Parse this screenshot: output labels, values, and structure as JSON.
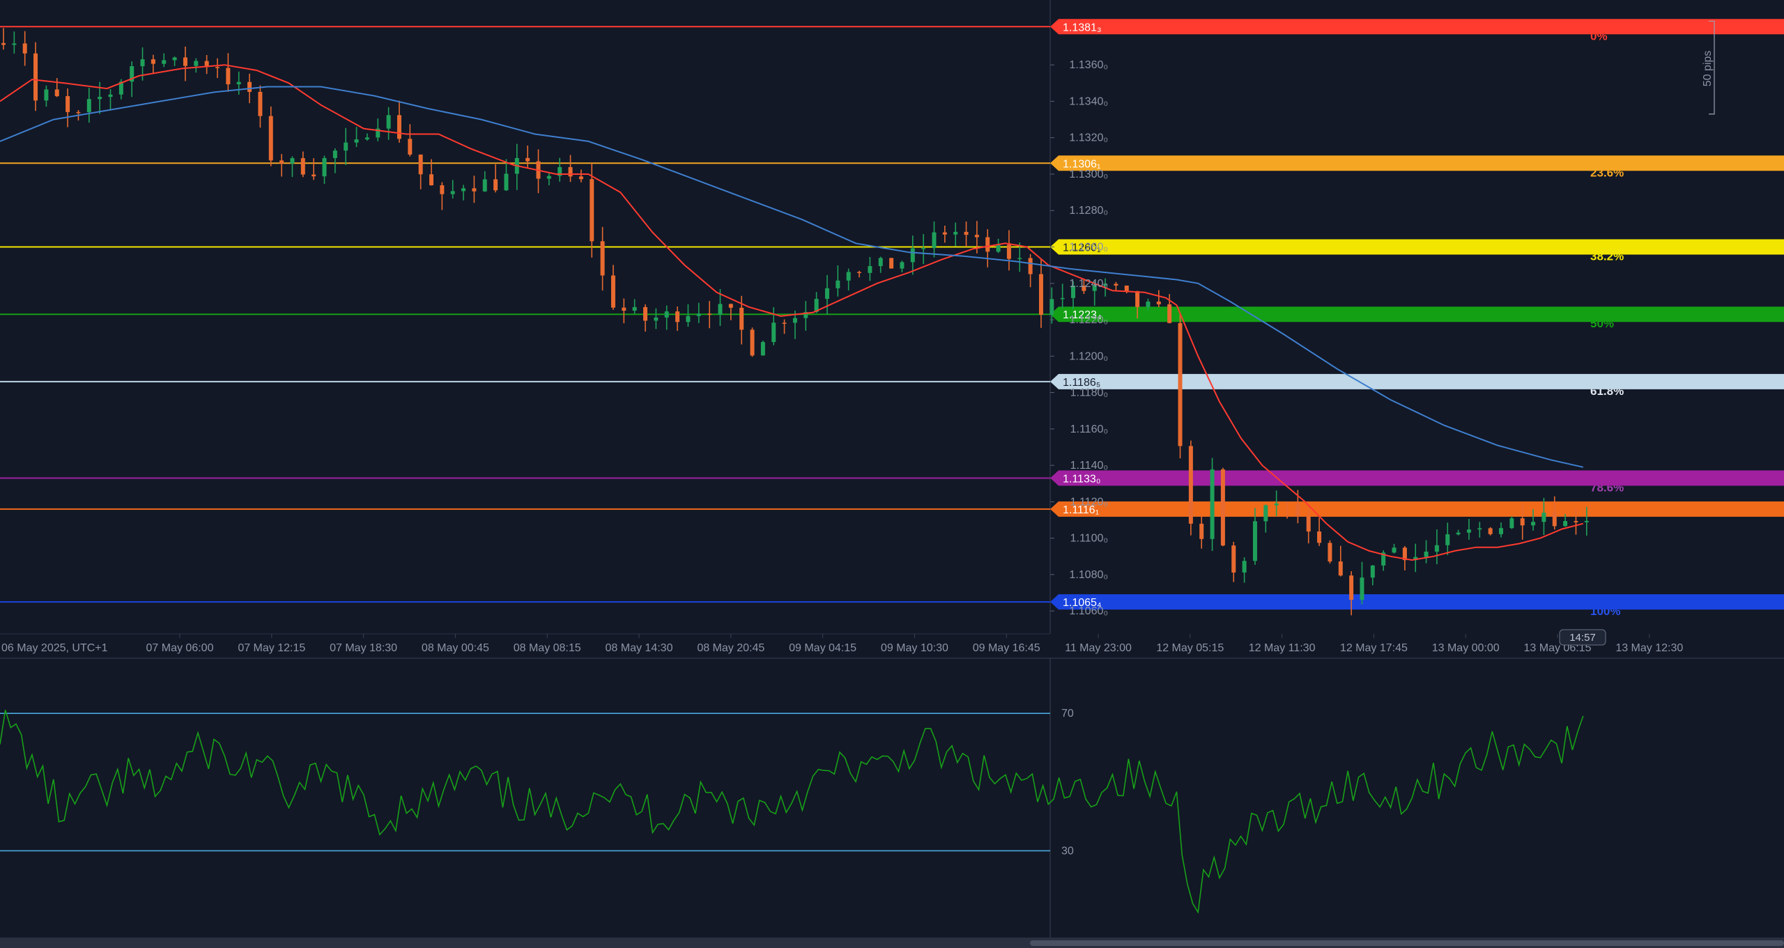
{
  "chart_data": [
    {
      "type": "candlestick",
      "symbol": "EURUSD",
      "timezone_label": "06 May 2025, UTC+1",
      "x_tick_labels": [
        "06 May 2025, UTC+1",
        "07 May 06:00",
        "07 May 12:15",
        "07 May 18:30",
        "08 May 00:45",
        "08 May 08:15",
        "08 May 14:30",
        "08 May 20:45",
        "09 May 04:15",
        "09 May 10:30",
        "09 May 16:45",
        "11 May 23:00",
        "12 May 05:15",
        "12 May 11:30",
        "12 May 17:45",
        "13 May 00:00",
        "13 May 06:15",
        "13 May 12:30"
      ],
      "y_tick_labels": [
        "1.1360₀",
        "1.1340₀",
        "1.1320₀",
        "1.1300₀",
        "1.1280₀",
        "1.1260₀",
        "1.1240₀",
        "1.1220₀",
        "1.1200₀",
        "1.1180₀",
        "1.1160₀",
        "1.1140₀",
        "1.1120₀",
        "1.1100₀",
        "1.1080₀",
        "1.1060₀"
      ],
      "ylim": [
        1.1057,
        1.1388
      ],
      "price_path": [
        [
          0,
          1.1372
        ],
        [
          1.5,
          1.1378
        ],
        [
          3,
          1.1368
        ],
        [
          4,
          1.134
        ],
        [
          5.5,
          1.1345
        ],
        [
          7.5,
          1.1328
        ],
        [
          9.5,
          1.134
        ],
        [
          11,
          1.1345
        ],
        [
          13,
          1.136
        ],
        [
          15,
          1.1365
        ],
        [
          17,
          1.136
        ],
        [
          19,
          1.1362
        ],
        [
          21,
          1.136
        ],
        [
          22.5,
          1.1348
        ],
        [
          24,
          1.1345
        ],
        [
          26,
          1.131
        ],
        [
          28,
          1.1305
        ],
        [
          30,
          1.1303
        ],
        [
          32,
          1.1312
        ],
        [
          34,
          1.1315
        ],
        [
          35.5,
          1.133
        ],
        [
          37,
          1.133
        ],
        [
          38.5,
          1.1318
        ],
        [
          40,
          1.13
        ],
        [
          42,
          1.1285
        ],
        [
          44,
          1.1295
        ],
        [
          46,
          1.1295
        ],
        [
          47.5,
          1.1295
        ],
        [
          49,
          1.1305
        ],
        [
          51,
          1.13
        ],
        [
          53,
          1.13
        ],
        [
          55,
          1.1295
        ],
        [
          56,
          1.1265
        ],
        [
          57.5,
          1.1232
        ],
        [
          59,
          1.1225
        ],
        [
          61,
          1.122
        ],
        [
          63,
          1.1222
        ],
        [
          65,
          1.1225
        ],
        [
          67,
          1.1227
        ],
        [
          69,
          1.1222
        ],
        [
          71,
          1.1205
        ],
        [
          72.5,
          1.1215
        ],
        [
          74,
          1.1222
        ],
        [
          76,
          1.1225
        ],
        [
          78,
          1.124
        ],
        [
          80,
          1.125
        ],
        [
          82,
          1.1248
        ],
        [
          84,
          1.125
        ],
        [
          86,
          1.1255
        ],
        [
          88,
          1.1265
        ],
        [
          89.5,
          1.127
        ],
        [
          91,
          1.1265
        ],
        [
          93,
          1.1258
        ],
        [
          95,
          1.1255
        ],
        [
          97,
          1.1248
        ],
        [
          97.5,
          1.1225
        ],
        [
          99,
          1.123
        ],
        [
          101,
          1.1235
        ],
        [
          103,
          1.1238
        ],
        [
          105,
          1.1235
        ],
        [
          107,
          1.1228
        ],
        [
          108.5,
          1.1225
        ],
        [
          110,
          1.1222
        ],
        [
          110.5,
          1.1175
        ],
        [
          111.5,
          1.112
        ],
        [
          113,
          1.1095
        ],
        [
          114,
          1.1135
        ],
        [
          115,
          1.1095
        ],
        [
          116,
          1.108
        ],
        [
          117,
          1.109
        ],
        [
          118,
          1.1108
        ],
        [
          120,
          1.112
        ],
        [
          122,
          1.1112
        ],
        [
          123,
          1.11
        ],
        [
          124.5,
          1.109
        ],
        [
          126,
          1.1075
        ],
        [
          127.5,
          1.1068
        ],
        [
          129,
          1.1088
        ],
        [
          131,
          1.1095
        ],
        [
          133,
          1.109
        ],
        [
          135,
          1.1095
        ],
        [
          137,
          1.11
        ],
        [
          139,
          1.1105
        ],
        [
          141,
          1.1107
        ],
        [
          143,
          1.1112
        ],
        [
          145,
          1.1115
        ],
        [
          147,
          1.1108
        ],
        [
          148,
          1.1112
        ]
      ],
      "candle_count": 149,
      "series": [
        {
          "name": "",
          "color": "#ff3b30",
          "points": [
            [
              0,
              1.134
            ],
            [
              3,
              1.1352
            ],
            [
              6,
              1.135
            ],
            [
              10,
              1.1347
            ],
            [
              13,
              1.1354
            ],
            [
              17,
              1.1358
            ],
            [
              21,
              1.136
            ],
            [
              24,
              1.1357
            ],
            [
              27,
              1.135
            ],
            [
              30,
              1.1338
            ],
            [
              34,
              1.1325
            ],
            [
              38,
              1.1322
            ],
            [
              41,
              1.1322
            ],
            [
              44,
              1.1314
            ],
            [
              48,
              1.1305
            ],
            [
              52,
              1.13
            ],
            [
              55,
              1.13
            ],
            [
              58,
              1.129
            ],
            [
              61,
              1.1268
            ],
            [
              64,
              1.125
            ],
            [
              67,
              1.1235
            ],
            [
              70,
              1.1227
            ],
            [
              73,
              1.1222
            ],
            [
              76,
              1.1224
            ],
            [
              79,
              1.1232
            ],
            [
              82,
              1.124
            ],
            [
              85,
              1.1246
            ],
            [
              88,
              1.1253
            ],
            [
              91,
              1.1259
            ],
            [
              94,
              1.1262
            ],
            [
              96,
              1.126
            ],
            [
              98,
              1.125
            ],
            [
              101,
              1.1243
            ],
            [
              104,
              1.1236
            ],
            [
              107,
              1.1235
            ],
            [
              109,
              1.1232
            ],
            [
              110,
              1.1228
            ],
            [
              112,
              1.12
            ],
            [
              114,
              1.1175
            ],
            [
              116,
              1.1155
            ],
            [
              118,
              1.114
            ],
            [
              120,
              1.113
            ],
            [
              122,
              1.112
            ],
            [
              124,
              1.1108
            ],
            [
              126,
              1.1098
            ],
            [
              128,
              1.1093
            ],
            [
              130,
              1.109
            ],
            [
              132,
              1.1088
            ],
            [
              134,
              1.109
            ],
            [
              136,
              1.1093
            ],
            [
              138,
              1.1095
            ],
            [
              140,
              1.1095
            ],
            [
              142,
              1.1097
            ],
            [
              144,
              1.11
            ],
            [
              146,
              1.1105
            ],
            [
              148,
              1.1108
            ]
          ]
        },
        {
          "name": "",
          "color": "#3f7fcf",
          "points": [
            [
              0,
              1.1318
            ],
            [
              5,
              1.133
            ],
            [
              10,
              1.1335
            ],
            [
              15,
              1.134
            ],
            [
              20,
              1.1345
            ],
            [
              25,
              1.1348
            ],
            [
              30,
              1.1348
            ],
            [
              35,
              1.1343
            ],
            [
              40,
              1.1336
            ],
            [
              45,
              1.133
            ],
            [
              50,
              1.1322
            ],
            [
              55,
              1.1318
            ],
            [
              60,
              1.1308
            ],
            [
              65,
              1.1297
            ],
            [
              70,
              1.1286
            ],
            [
              75,
              1.1275
            ],
            [
              80,
              1.1262
            ],
            [
              85,
              1.1257
            ],
            [
              90,
              1.1255
            ],
            [
              95,
              1.1252
            ],
            [
              100,
              1.1248
            ],
            [
              105,
              1.1245
            ],
            [
              110,
              1.1242
            ],
            [
              112,
              1.124
            ],
            [
              115,
              1.123
            ],
            [
              120,
              1.1212
            ],
            [
              125,
              1.1193
            ],
            [
              130,
              1.1176
            ],
            [
              135,
              1.1162
            ],
            [
              140,
              1.1151
            ],
            [
              145,
              1.1143
            ],
            [
              148,
              1.1139
            ]
          ]
        }
      ],
      "horizontal_levels": [
        {
          "label": "0%",
          "price_label": "1.1381₃",
          "value": 1.1381,
          "color": "#ff3b30",
          "text_color": "#ff3b30"
        },
        {
          "label": "23.6%",
          "price_label": "1.1306₁",
          "value": 1.1306,
          "color": "#f5a623",
          "text_color": "#f5a623"
        },
        {
          "label": "38.2%",
          "price_label": "1.1260₁",
          "value": 1.126,
          "color": "#f2e600",
          "text_color": "#f2e600"
        },
        {
          "label": "50%",
          "price_label": "1.1223₄",
          "value": 1.1223,
          "color": "#14a014",
          "text_color": "#14a014"
        },
        {
          "label": "61.8%",
          "price_label": "1.1186₅",
          "value": 1.1186,
          "color": "#c0d8e8",
          "text_color": "#e0e8f0"
        },
        {
          "label": "78.6%",
          "price_label": "1.1133₀",
          "value": 1.1133,
          "color": "#a020a0",
          "text_color": "#a040b0"
        },
        {
          "label": "",
          "price_label": "1.1116₁",
          "value": 1.1116,
          "color": "#f06a1a",
          "text_color": "#f06a1a"
        },
        {
          "label": "100%",
          "price_label": "1.1065₄",
          "value": 1.1065,
          "color": "#1a44e0",
          "text_color": "#2a54f0"
        }
      ],
      "pip_ruler_label": "50 pips",
      "countdown_label": "14:57",
      "candle_up_color": "#1fa05a",
      "candle_down_color": "#e86a30"
    },
    {
      "type": "line",
      "name": "oscillator",
      "ylim": [
        8,
        82
      ],
      "y_tick_labels": [
        "70",
        "30"
      ],
      "levels": [
        70,
        30
      ],
      "level_color": "#4aa8e0",
      "line_color": "#18a018",
      "points": [
        [
          0,
          67
        ],
        [
          2,
          62
        ],
        [
          4,
          50
        ],
        [
          6,
          40
        ],
        [
          8,
          47
        ],
        [
          10,
          46
        ],
        [
          12,
          52
        ],
        [
          14,
          48
        ],
        [
          16,
          52
        ],
        [
          18,
          58
        ],
        [
          20,
          60
        ],
        [
          22,
          53
        ],
        [
          24,
          57
        ],
        [
          26,
          48
        ],
        [
          28,
          46
        ],
        [
          30,
          52
        ],
        [
          32,
          50
        ],
        [
          34,
          42
        ],
        [
          36,
          38
        ],
        [
          38,
          45
        ],
        [
          40,
          44
        ],
        [
          42,
          48
        ],
        [
          44,
          52
        ],
        [
          46,
          48
        ],
        [
          48,
          45
        ],
        [
          50,
          42
        ],
        [
          52,
          40
        ],
        [
          54,
          43
        ],
        [
          56,
          49
        ],
        [
          58,
          45
        ],
        [
          60,
          42
        ],
        [
          62,
          40
        ],
        [
          64,
          45
        ],
        [
          66,
          46
        ],
        [
          68,
          44
        ],
        [
          70,
          42
        ],
        [
          72,
          43
        ],
        [
          74,
          46
        ],
        [
          76,
          49
        ],
        [
          78,
          53
        ],
        [
          80,
          55
        ],
        [
          82,
          53
        ],
        [
          84,
          56
        ],
        [
          86,
          62
        ],
        [
          88,
          58
        ],
        [
          90,
          55
        ],
        [
          92,
          52
        ],
        [
          94,
          50
        ],
        [
          96,
          48
        ],
        [
          98,
          45
        ],
        [
          100,
          46
        ],
        [
          102,
          48
        ],
        [
          104,
          50
        ],
        [
          106,
          52
        ],
        [
          108,
          48
        ],
        [
          110,
          44
        ],
        [
          111,
          23
        ],
        [
          112,
          18
        ],
        [
          114,
          28
        ],
        [
          116,
          32
        ],
        [
          118,
          38
        ],
        [
          120,
          40
        ],
        [
          122,
          42
        ],
        [
          124,
          46
        ],
        [
          126,
          50
        ],
        [
          128,
          48
        ],
        [
          130,
          45
        ],
        [
          132,
          48
        ],
        [
          134,
          50
        ],
        [
          136,
          54
        ],
        [
          138,
          56
        ],
        [
          140,
          60
        ],
        [
          142,
          58
        ],
        [
          144,
          62
        ],
        [
          146,
          60
        ],
        [
          148,
          64
        ]
      ]
    }
  ]
}
